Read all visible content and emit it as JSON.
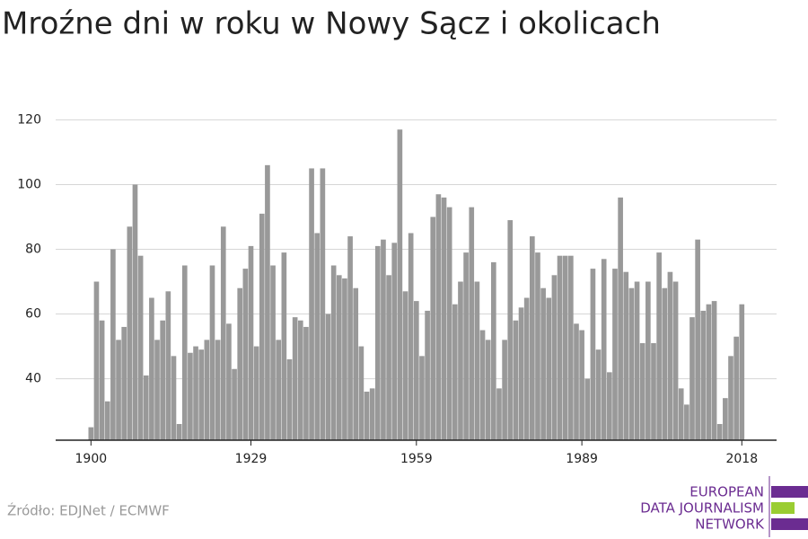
{
  "chart_data": {
    "type": "bar",
    "title": "Mroźne dni w roku w Nowy Sącz i okolicach",
    "x": [
      1900,
      1901,
      1902,
      1903,
      1904,
      1905,
      1906,
      1907,
      1908,
      1909,
      1910,
      1911,
      1912,
      1913,
      1914,
      1915,
      1916,
      1917,
      1918,
      1919,
      1920,
      1921,
      1922,
      1923,
      1924,
      1925,
      1926,
      1927,
      1928,
      1929,
      1930,
      1931,
      1932,
      1933,
      1934,
      1935,
      1936,
      1937,
      1938,
      1939,
      1940,
      1941,
      1942,
      1943,
      1944,
      1945,
      1946,
      1947,
      1948,
      1949,
      1950,
      1951,
      1952,
      1953,
      1954,
      1955,
      1956,
      1957,
      1958,
      1959,
      1960,
      1961,
      1962,
      1963,
      1964,
      1965,
      1966,
      1967,
      1968,
      1969,
      1970,
      1971,
      1972,
      1973,
      1974,
      1975,
      1976,
      1977,
      1978,
      1979,
      1980,
      1981,
      1982,
      1983,
      1984,
      1985,
      1986,
      1987,
      1988,
      1989,
      1990,
      1991,
      1992,
      1993,
      1994,
      1995,
      1996,
      1997,
      1998,
      1999,
      2000,
      2001,
      2002,
      2003,
      2004,
      2005,
      2006,
      2007,
      2008,
      2009,
      2010,
      2011,
      2012,
      2013,
      2014,
      2015,
      2016,
      2017,
      2018
    ],
    "values": [
      25,
      70,
      58,
      33,
      80,
      52,
      56,
      87,
      100,
      78,
      41,
      65,
      52,
      58,
      67,
      47,
      26,
      75,
      48,
      50,
      49,
      52,
      75,
      52,
      87,
      57,
      43,
      68,
      74,
      81,
      50,
      91,
      106,
      75,
      52,
      79,
      46,
      59,
      58,
      56,
      105,
      85,
      105,
      60,
      75,
      72,
      71,
      84,
      68,
      50,
      36,
      37,
      81,
      83,
      72,
      82,
      117,
      67,
      85,
      64,
      47,
      61,
      90,
      97,
      96,
      93,
      63,
      70,
      79,
      93,
      70,
      55,
      52,
      76,
      37,
      52,
      89,
      58,
      62,
      65,
      84,
      79,
      68,
      65,
      72,
      78,
      78,
      78,
      57,
      55,
      40,
      74,
      49,
      77,
      42,
      74,
      96,
      73,
      68,
      70,
      51,
      70,
      51,
      79,
      68,
      73,
      70,
      37,
      32,
      59,
      83,
      61,
      63,
      64,
      26,
      34,
      47,
      53,
      63
    ],
    "color": "#999999",
    "xlim": [
      1893.6,
      2024.3
    ],
    "xticks": [
      1900,
      1929,
      1959,
      1989,
      2018
    ],
    "ylim": [
      21,
      124
    ],
    "yticks": [
      40,
      60,
      80,
      100,
      120
    ],
    "grid": true
  },
  "source": "Źródło: EDJNet / ECMWF",
  "logo": [
    "EUROPEAN",
    "DATA JOURNALISM",
    "NETWORK"
  ]
}
